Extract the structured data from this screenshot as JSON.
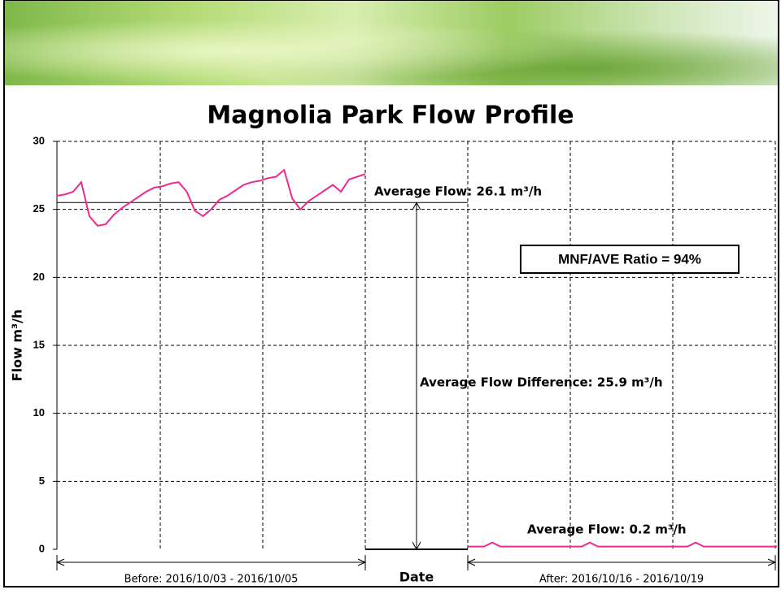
{
  "chart_data": {
    "type": "line",
    "title": "Magnolia Park Flow Profile",
    "y_label": "Flow m³/h",
    "x_label": "Date",
    "ylim": [
      0,
      30
    ],
    "yticks": [
      0,
      5,
      10,
      15,
      20,
      25,
      30
    ],
    "grid": true,
    "series": [
      {
        "period": "Before: 2016/10/03 - 2016/10/05",
        "color": "#ee2a8c",
        "values": [
          26.0,
          26.1,
          26.3,
          27.0,
          24.5,
          23.8,
          23.9,
          24.6,
          25.1,
          25.5,
          25.9,
          26.3,
          26.6,
          26.7,
          26.9,
          27.0,
          26.3,
          24.9,
          24.5,
          25.0,
          25.7,
          26.0,
          26.4,
          26.8,
          27.0,
          27.1,
          27.3,
          27.4,
          27.9,
          25.8,
          25.0,
          25.6,
          26.0,
          26.4,
          26.8,
          26.3,
          27.2,
          27.4,
          27.6
        ]
      },
      {
        "period": "After: 2016/10/16 - 2016/10/19",
        "color": "#ee2a8c",
        "values": [
          0.2,
          0.2,
          0.2,
          0.5,
          0.2,
          0.2,
          0.2,
          0.2,
          0.2,
          0.2,
          0.2,
          0.2,
          0.2,
          0.2,
          0.2,
          0.5,
          0.2,
          0.2,
          0.2,
          0.2,
          0.2,
          0.2,
          0.2,
          0.2,
          0.2,
          0.2,
          0.2,
          0.2,
          0.5,
          0.2,
          0.2,
          0.2,
          0.2,
          0.2,
          0.2,
          0.2,
          0.2,
          0.2,
          0.2
        ]
      }
    ],
    "reference_line": 25.5,
    "difference_arrow": [
      25.5,
      0
    ],
    "annotations": [
      "Average Flow: 26.1 m³/h",
      "Average Flow Difference: 25.9 m³/h",
      "Average Flow: 0.2 m³/h"
    ],
    "ratio_box": "MNF/AVE Ratio = 94%"
  }
}
